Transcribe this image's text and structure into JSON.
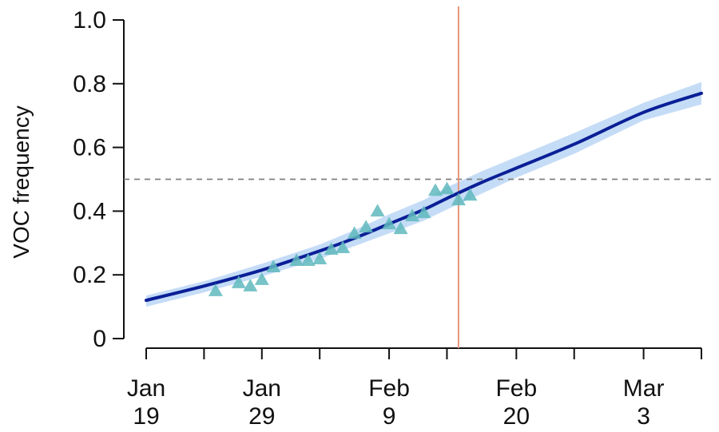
{
  "chart_data": {
    "type": "line",
    "title": "",
    "xlabel": "",
    "ylabel": "VOC frequency",
    "ylim": [
      0,
      1.0
    ],
    "xlim": [
      "Jan 19",
      "Mar 8"
    ],
    "y_ticks": [
      {
        "value": 0,
        "label": "0"
      },
      {
        "value": 0.2,
        "label": "0.2"
      },
      {
        "value": 0.4,
        "label": "0.4"
      },
      {
        "value": 0.6,
        "label": "0.6"
      },
      {
        "value": 0.8,
        "label": "0.8"
      },
      {
        "value": 1.0,
        "label": "1.0"
      }
    ],
    "x_tick_dates": [
      "Jan 19",
      "Jan 24",
      "Jan 29",
      "Feb 3",
      "Feb 9",
      "Feb 14",
      "Feb 20",
      "Feb 25",
      "Mar 3",
      "Mar 8"
    ],
    "x_tick_labels": [
      {
        "date": "Jan 19",
        "line1": "Jan",
        "line2": "19"
      },
      {
        "date": "Jan 29",
        "line1": "Jan",
        "line2": "29"
      },
      {
        "date": "Feb 9",
        "line1": "Feb",
        "line2": "9"
      },
      {
        "date": "Feb 20",
        "line1": "Feb",
        "line2": "20"
      },
      {
        "date": "Mar 3",
        "line1": "Mar",
        "line2": "3"
      }
    ],
    "reference_lines": {
      "horizontal": {
        "y": 0.5,
        "style": "dashed",
        "color": "#808080"
      },
      "vertical": {
        "x": "Feb 15",
        "color": "#e8957c"
      }
    },
    "colors": {
      "fit_line": "#0a1f96",
      "confidence_band": "#c5dcf7",
      "points": "#5fb8bd",
      "axis": "#111111"
    },
    "series": [
      {
        "kind": "fit",
        "x": [
          "Jan 19",
          "Jan 24",
          "Jan 29",
          "Feb 3",
          "Feb 6",
          "Feb 9",
          "Feb 12",
          "Feb 14",
          "Feb 17",
          "Feb 20",
          "Feb 25",
          "Mar 3",
          "Mar 8"
        ],
        "y": [
          0.12,
          0.165,
          0.215,
          0.275,
          0.315,
          0.36,
          0.405,
          0.44,
          0.49,
          0.535,
          0.61,
          0.71,
          0.77
        ],
        "band_lower": [
          0.1,
          0.145,
          0.195,
          0.25,
          0.29,
          0.33,
          0.37,
          0.405,
          0.455,
          0.505,
          0.58,
          0.685,
          0.735
        ],
        "band_upper": [
          0.135,
          0.18,
          0.235,
          0.295,
          0.34,
          0.39,
          0.435,
          0.475,
          0.525,
          0.57,
          0.645,
          0.74,
          0.805
        ]
      },
      {
        "kind": "observed",
        "marker": "triangle",
        "x": [
          "Jan 25",
          "Jan 27",
          "Jan 28",
          "Jan 29",
          "Jan 30",
          "Feb 1",
          "Feb 2",
          "Feb 3",
          "Feb 4",
          "Feb 5",
          "Feb 6",
          "Feb 7",
          "Feb 8",
          "Feb 9",
          "Feb 10",
          "Feb 11",
          "Feb 12",
          "Feb 13",
          "Feb 14",
          "Feb 15",
          "Feb 16"
        ],
        "y": [
          0.15,
          0.175,
          0.165,
          0.185,
          0.225,
          0.245,
          0.245,
          0.25,
          0.28,
          0.285,
          0.33,
          0.35,
          0.4,
          0.36,
          0.345,
          0.385,
          0.395,
          0.465,
          0.47,
          0.435,
          0.45
        ]
      }
    ]
  }
}
